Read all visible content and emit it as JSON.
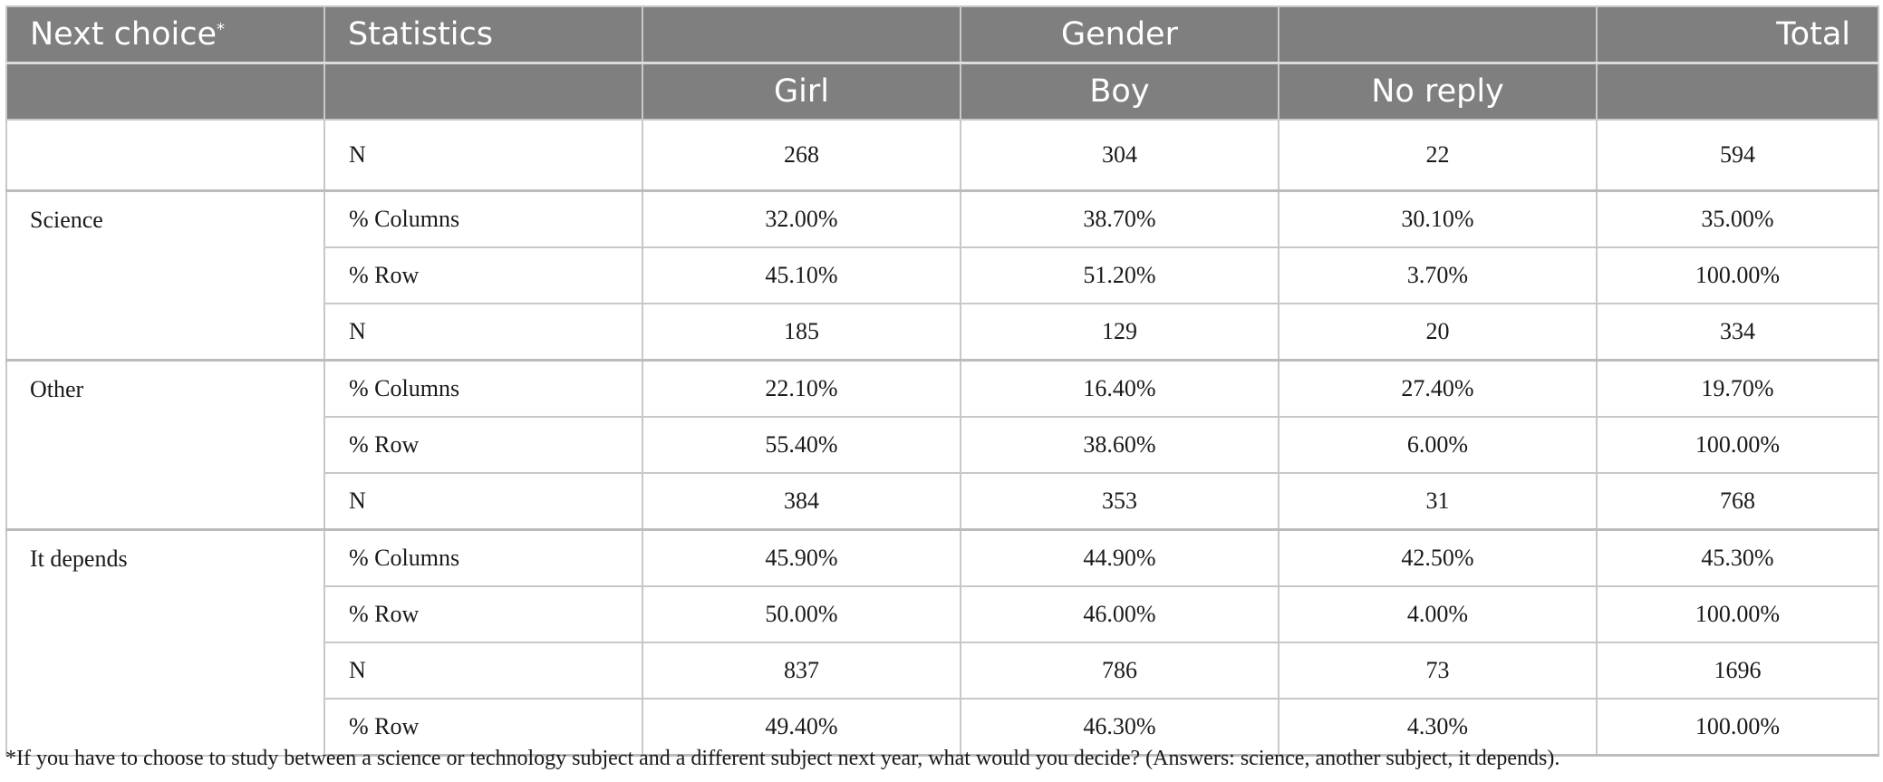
{
  "header": {
    "next_choice_label": "Next choice",
    "next_choice_marker": "*",
    "statistics_label": "Statistics",
    "gender_label": "Gender",
    "total_label": "Total",
    "girl_label": "Girl",
    "boy_label": "Boy",
    "no_reply_label": "No reply"
  },
  "rows": [
    {
      "group": "",
      "stat": "N",
      "girl": "268",
      "boy": "304",
      "no_reply": "22",
      "total": "594"
    },
    {
      "group": "Science",
      "stat": "% Columns",
      "girl": "32.00%",
      "boy": "38.70%",
      "no_reply": "30.10%",
      "total": "35.00%"
    },
    {
      "group": "",
      "stat": "% Row",
      "girl": "45.10%",
      "boy": "51.20%",
      "no_reply": "3.70%",
      "total": "100.00%"
    },
    {
      "group": "",
      "stat": "N",
      "girl": "185",
      "boy": "129",
      "no_reply": "20",
      "total": "334"
    },
    {
      "group": "Other",
      "stat": "% Columns",
      "girl": "22.10%",
      "boy": "16.40%",
      "no_reply": "27.40%",
      "total": "19.70%"
    },
    {
      "group": "",
      "stat": "% Row",
      "girl": "55.40%",
      "boy": "38.60%",
      "no_reply": "6.00%",
      "total": "100.00%"
    },
    {
      "group": "",
      "stat": "N",
      "girl": "384",
      "boy": "353",
      "no_reply": "31",
      "total": "768"
    },
    {
      "group": "It depends",
      "stat": "% Columns",
      "girl": "45.90%",
      "boy": "44.90%",
      "no_reply": "42.50%",
      "total": "45.30%"
    },
    {
      "group": "",
      "stat": "% Row",
      "girl": "50.00%",
      "boy": "46.00%",
      "no_reply": "4.00%",
      "total": "100.00%"
    },
    {
      "group": "",
      "stat": "N",
      "girl": "837",
      "boy": "786",
      "no_reply": "73",
      "total": "1696"
    },
    {
      "group": "",
      "stat": "% Row",
      "girl": "49.40%",
      "boy": "46.30%",
      "no_reply": "4.30%",
      "total": "100.00%"
    }
  ],
  "footnote": "*If you have to choose to study between a science or technology subject and a different subject next year, what would you decide? (Answers: science, another subject, it depends)."
}
